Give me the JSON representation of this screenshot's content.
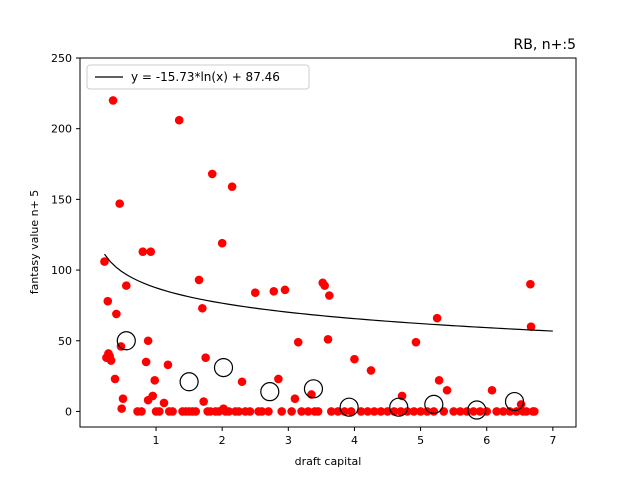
{
  "chart_data": {
    "type": "scatter",
    "title": "RB, n+:5",
    "xlabel": "draft capital",
    "ylabel": "fantasy value n+ 5",
    "xlim": [
      -0.15,
      7.35
    ],
    "ylim": [
      -11,
      250
    ],
    "xticks": [
      1,
      2,
      3,
      4,
      5,
      6,
      7
    ],
    "yticks": [
      0,
      50,
      100,
      150,
      200,
      250
    ],
    "legend_position": "top-left",
    "grid": false,
    "colors": {
      "points": "#ff0000",
      "trend": "#000000",
      "bins": "#000000"
    },
    "trendline": {
      "label": "y = -15.73*ln(x) + 87.46",
      "a": -15.73,
      "b": 87.46,
      "x_range": [
        0.22,
        7.0
      ]
    },
    "points": [
      [
        0.22,
        106
      ],
      [
        0.25,
        38
      ],
      [
        0.27,
        78
      ],
      [
        0.28,
        41
      ],
      [
        0.3,
        39
      ],
      [
        0.32,
        36
      ],
      [
        0.35,
        220
      ],
      [
        0.38,
        23
      ],
      [
        0.4,
        69
      ],
      [
        0.45,
        147
      ],
      [
        0.47,
        46
      ],
      [
        0.5,
        9
      ],
      [
        0.48,
        2
      ],
      [
        0.55,
        89
      ],
      [
        0.72,
        0
      ],
      [
        0.78,
        0
      ],
      [
        0.8,
        113
      ],
      [
        0.85,
        35
      ],
      [
        0.88,
        50
      ],
      [
        0.92,
        113
      ],
      [
        0.88,
        8
      ],
      [
        0.95,
        11
      ],
      [
        0.98,
        22
      ],
      [
        1.0,
        0
      ],
      [
        1.05,
        0
      ],
      [
        1.12,
        6
      ],
      [
        1.18,
        33
      ],
      [
        1.2,
        0
      ],
      [
        1.25,
        0
      ],
      [
        1.35,
        206
      ],
      [
        1.4,
        0
      ],
      [
        1.45,
        0
      ],
      [
        1.5,
        0
      ],
      [
        1.55,
        0
      ],
      [
        1.6,
        0
      ],
      [
        1.65,
        93
      ],
      [
        1.7,
        73
      ],
      [
        1.72,
        7
      ],
      [
        1.75,
        38
      ],
      [
        1.78,
        0
      ],
      [
        1.82,
        0
      ],
      [
        1.85,
        168
      ],
      [
        1.9,
        0
      ],
      [
        1.95,
        0
      ],
      [
        2.0,
        119
      ],
      [
        2.02,
        2
      ],
      [
        2.05,
        0
      ],
      [
        2.1,
        0
      ],
      [
        2.15,
        159
      ],
      [
        2.2,
        0
      ],
      [
        2.25,
        0
      ],
      [
        2.3,
        21
      ],
      [
        2.35,
        0
      ],
      [
        2.42,
        0
      ],
      [
        2.5,
        84
      ],
      [
        2.55,
        0
      ],
      [
        2.6,
        0
      ],
      [
        2.7,
        0
      ],
      [
        2.78,
        85
      ],
      [
        2.85,
        23
      ],
      [
        2.9,
        0
      ],
      [
        2.95,
        86
      ],
      [
        3.05,
        0
      ],
      [
        3.1,
        9
      ],
      [
        3.15,
        49
      ],
      [
        3.2,
        0
      ],
      [
        3.3,
        0
      ],
      [
        3.35,
        12
      ],
      [
        3.4,
        0
      ],
      [
        3.45,
        0
      ],
      [
        3.52,
        91
      ],
      [
        3.55,
        89
      ],
      [
        3.6,
        51
      ],
      [
        3.62,
        82
      ],
      [
        3.65,
        0
      ],
      [
        3.75,
        0
      ],
      [
        3.85,
        0
      ],
      [
        3.95,
        0
      ],
      [
        4.0,
        37
      ],
      [
        4.1,
        0
      ],
      [
        4.2,
        0
      ],
      [
        4.25,
        29
      ],
      [
        4.3,
        0
      ],
      [
        4.4,
        0
      ],
      [
        4.5,
        0
      ],
      [
        4.6,
        0
      ],
      [
        4.7,
        0
      ],
      [
        4.72,
        11
      ],
      [
        4.8,
        0
      ],
      [
        4.9,
        0
      ],
      [
        4.93,
        49
      ],
      [
        5.0,
        0
      ],
      [
        5.1,
        0
      ],
      [
        5.2,
        0
      ],
      [
        5.25,
        66
      ],
      [
        5.28,
        22
      ],
      [
        5.35,
        0
      ],
      [
        5.4,
        15
      ],
      [
        5.5,
        0
      ],
      [
        5.6,
        0
      ],
      [
        5.7,
        0
      ],
      [
        5.8,
        0
      ],
      [
        5.9,
        0
      ],
      [
        6.0,
        0
      ],
      [
        6.08,
        15
      ],
      [
        6.15,
        0
      ],
      [
        6.25,
        0
      ],
      [
        6.35,
        0
      ],
      [
        6.45,
        0
      ],
      [
        6.52,
        5
      ],
      [
        6.55,
        0
      ],
      [
        6.6,
        0
      ],
      [
        6.66,
        90
      ],
      [
        6.67,
        60
      ],
      [
        6.7,
        0
      ],
      [
        6.72,
        0
      ]
    ],
    "bin_means": [
      [
        0.55,
        50
      ],
      [
        1.5,
        21
      ],
      [
        2.02,
        31
      ],
      [
        2.72,
        14
      ],
      [
        3.38,
        16
      ],
      [
        3.92,
        3
      ],
      [
        4.67,
        3
      ],
      [
        5.2,
        5
      ],
      [
        5.85,
        1
      ],
      [
        6.42,
        7
      ]
    ]
  }
}
